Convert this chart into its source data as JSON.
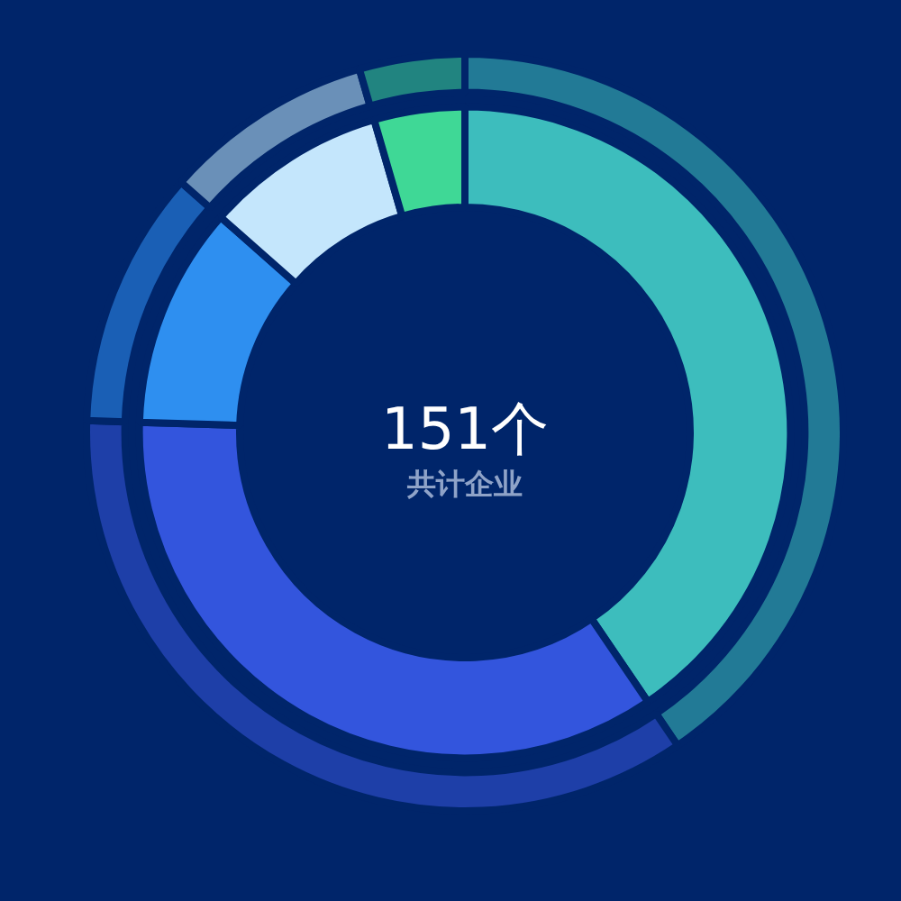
{
  "chart_data": {
    "type": "donut",
    "title": "151个",
    "subtitle": "共计企业",
    "categories": [
      null,
      null,
      null,
      null,
      null
    ],
    "series": [
      {
        "values": [
          40.5,
          35,
          11,
          9,
          4.5
        ],
        "colors": [
          "#3dbdbd",
          "#3355dd",
          "#2e8ff0",
          "#c4e6fc",
          "#3fd896"
        ]
      },
      {
        "values": [
          40.5,
          35,
          11,
          9,
          4.5
        ],
        "colors": [
          "#227a96",
          "#1e3fa8",
          "#1a5fb5",
          "#6a90b8",
          "#218480"
        ]
      }
    ],
    "legend": false
  }
}
